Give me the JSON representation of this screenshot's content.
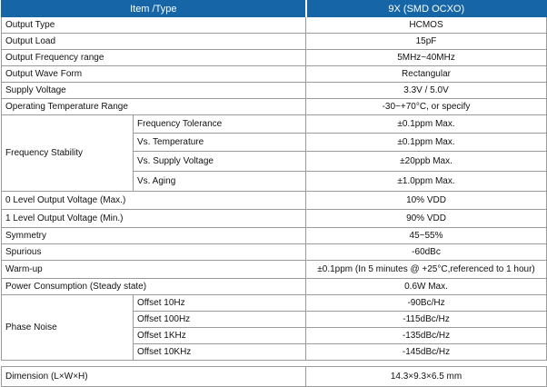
{
  "header": {
    "col_item": "Item /Type",
    "col_value": "9X (SMD OCXO)"
  },
  "rows": {
    "output_type": {
      "label": "Output Type",
      "value": "HCMOS"
    },
    "output_load": {
      "label": "Output Load",
      "value": "15pF"
    },
    "output_freq_range": {
      "label": "Output Frequency range",
      "value": "5MHz~40MHz"
    },
    "output_wave_form": {
      "label": "Output Wave Form",
      "value": "Rectangular"
    },
    "supply_voltage": {
      "label": "Supply Voltage",
      "value": "3.3V / 5.0V"
    },
    "operating_temp": {
      "label": "Operating Temperature Range",
      "value": "-30~+70°C, or specify"
    },
    "freq_stability": {
      "label": "Frequency Stability",
      "items": [
        {
          "label": "Frequency Tolerance",
          "value": "±0.1ppm Max."
        },
        {
          "label": "Vs. Temperature",
          "value": "±0.1ppm Max."
        },
        {
          "label": "Vs. Supply Voltage",
          "value": "±20ppb Max."
        },
        {
          "label": "Vs. Aging",
          "value": "±1.0ppm Max."
        }
      ]
    },
    "level0_voltage": {
      "label": "0 Level Output Voltage (Max.)",
      "value": "10% VDD"
    },
    "level1_voltage": {
      "label": "1 Level Output Voltage (Min.)",
      "value": "90% VDD"
    },
    "symmetry": {
      "label": "Symmetry",
      "value": "45~55%"
    },
    "spurious": {
      "label": "Spurious",
      "value": "-60dBc"
    },
    "warm_up": {
      "label": "Warm-up",
      "value": "±0.1ppm (In 5 minutes @ +25°C,referenced to 1 hour)"
    },
    "power_consumption": {
      "label": "Power Consumption (Steady state)",
      "value": "0.6W Max."
    },
    "phase_noise": {
      "label": "Phase Noise",
      "items": [
        {
          "label": "Offset 10Hz",
          "value": "-90Bc/Hz"
        },
        {
          "label": "Offset 100Hz",
          "value": "-115dBc/Hz"
        },
        {
          "label": "Offset 1KHz",
          "value": "-135dBc/Hz"
        },
        {
          "label": "Offset 10KHz",
          "value": "-145dBc/Hz"
        }
      ]
    },
    "dimension": {
      "label": "Dimension (L×W×H)",
      "value": "14.3×9.3×6.5 mm"
    }
  }
}
